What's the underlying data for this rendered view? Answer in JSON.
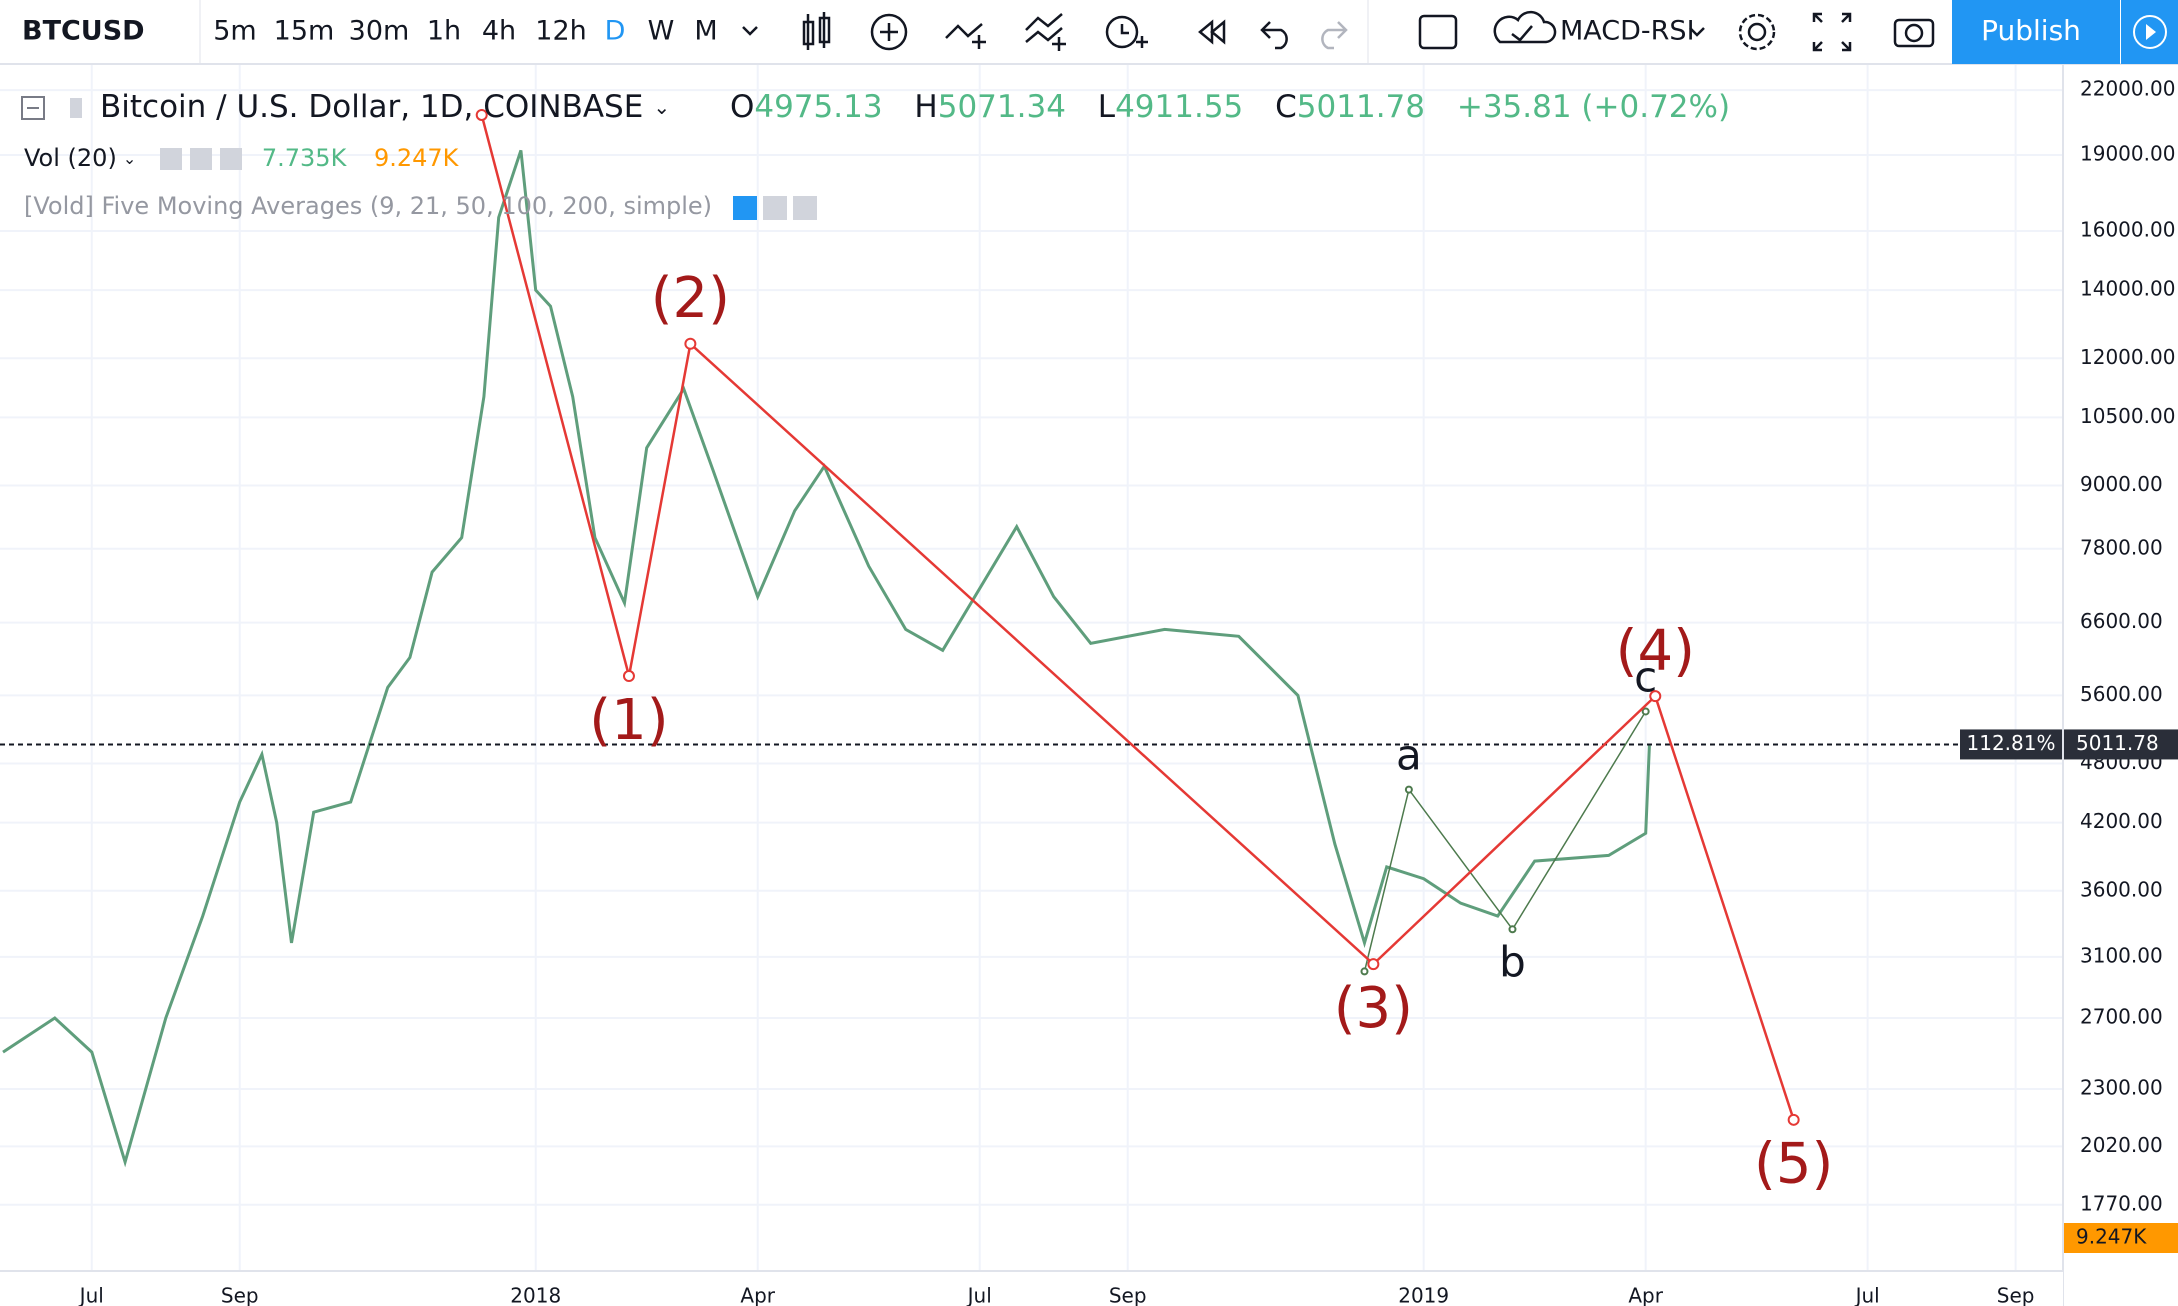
{
  "toolbar": {
    "symbol": "BTCUSD",
    "intervals": [
      "5m",
      "15m",
      "30m",
      "1h",
      "4h",
      "12h",
      "D",
      "W",
      "M"
    ],
    "active_interval": 6,
    "indicator": "MACD-RSI",
    "publish": "Publish"
  },
  "legend": {
    "title": "Bitcoin / U.S. Dollar, 1D, COINBASE",
    "open_label": "O",
    "open": "4975.13",
    "high_label": "H",
    "high": "5071.34",
    "low_label": "L",
    "low": "4911.55",
    "close_label": "C",
    "close": "5011.78",
    "change": "+35.81 (+0.72%)",
    "volume_title": "Vol (20)",
    "volume": "7.735K",
    "volume_ma": "9.247K",
    "ma_title": "[Vold] Five Moving Averages (9, 21, 50, 100, 200, simple)"
  },
  "chart_data": {
    "type": "line",
    "log_scale": true,
    "grid": true,
    "xlim": [
      -1.24,
      26.64
    ],
    "xticks": [
      {
        "value": 0,
        "label": "Jul"
      },
      {
        "value": 2,
        "label": "Sep"
      },
      {
        "value": 6,
        "label": "2018"
      },
      {
        "value": 9,
        "label": "Apr"
      },
      {
        "value": 12,
        "label": "Jul"
      },
      {
        "value": 14,
        "label": "Sep"
      },
      {
        "value": 18,
        "label": "2019"
      },
      {
        "value": 21,
        "label": "Apr"
      },
      {
        "value": 24,
        "label": "Jul"
      },
      {
        "value": 26,
        "label": "Sep"
      }
    ],
    "ylim": [
      1524,
      23340
    ],
    "yticks": [
      {
        "value": 22000,
        "label": "22000.00"
      },
      {
        "value": 19000,
        "label": "19000.00"
      },
      {
        "value": 16000,
        "label": "16000.00"
      },
      {
        "value": 14000,
        "label": "14000.00"
      },
      {
        "value": 12000,
        "label": "12000.00"
      },
      {
        "value": 10500,
        "label": "10500.00"
      },
      {
        "value": 9000,
        "label": "9000.00"
      },
      {
        "value": 7800,
        "label": "7800.00"
      },
      {
        "value": 6600,
        "label": "6600.00"
      },
      {
        "value": 5600,
        "label": "5600.00"
      },
      {
        "value": 4800,
        "label": "4800.00"
      },
      {
        "value": 4200,
        "label": "4200.00"
      },
      {
        "value": 3600,
        "label": "3600.00"
      },
      {
        "value": 3100,
        "label": "3100.00"
      },
      {
        "value": 2700,
        "label": "2700.00"
      },
      {
        "value": 2300,
        "label": "2300.00"
      },
      {
        "value": 2020,
        "label": "2020.00"
      },
      {
        "value": 1770,
        "label": "1770.00"
      }
    ],
    "price": {
      "color": "#5f9e7c",
      "x": [
        -1.2,
        -0.5,
        0,
        0.45,
        1,
        1.5,
        2,
        2.3,
        2.5,
        2.7,
        3,
        3.5,
        4,
        4.3,
        4.6,
        5,
        5.3,
        5.5,
        5.8,
        6,
        6.2,
        6.5,
        6.8,
        7.2,
        7.5,
        8,
        8.4,
        9,
        9.5,
        9.9,
        10.5,
        11,
        11.5,
        12.5,
        13,
        13.5,
        14.5,
        15.5,
        16.3,
        16.8,
        17.2,
        17.5,
        18,
        18.5,
        19,
        19.5,
        20.5,
        21,
        21.05
      ],
      "values": [
        2500,
        2700,
        2500,
        1950,
        2700,
        3400,
        4400,
        4900,
        4200,
        3200,
        4300,
        4400,
        5700,
        6100,
        7400,
        8000,
        11000,
        16500,
        19200,
        14000,
        13500,
        11000,
        8000,
        6900,
        9800,
        11200,
        9300,
        7000,
        8500,
        9400,
        7500,
        6500,
        6200,
        8200,
        7000,
        6300,
        6500,
        6400,
        5600,
        4000,
        3200,
        3800,
        3700,
        3500,
        3400,
        3850,
        3900,
        4100,
        5000
      ]
    },
    "last_price": {
      "value": 5011.78,
      "label": "5011.78",
      "percent": "112.81%"
    },
    "volume_ma_label": "9.247K",
    "waves": {
      "color": "#e53935",
      "label_color": "#a31a1a",
      "x": [
        5.27,
        7.26,
        8.09,
        17.32,
        21.13,
        23.0
      ],
      "values": [
        20800,
        5850,
        12400,
        3050,
        5590,
        2145
      ],
      "labels": [
        null,
        "(1)",
        "(2)",
        "(3)",
        "(4)",
        "(5)"
      ]
    },
    "subwaves": {
      "color": "#4d7a4d",
      "x": [
        17.2,
        17.8,
        19.2,
        21.0
      ],
      "values": [
        3000,
        4525,
        3300,
        5400
      ],
      "labels": [
        null,
        "a",
        "b",
        "c"
      ]
    }
  }
}
